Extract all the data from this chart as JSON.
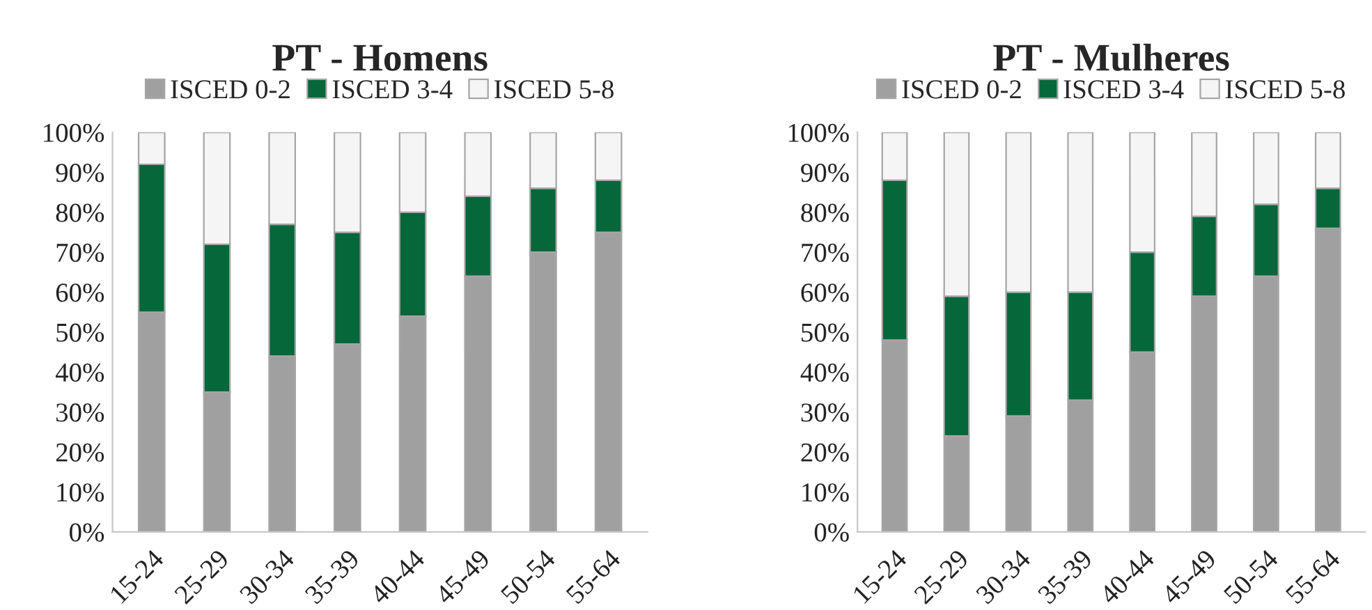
{
  "chart_data": [
    {
      "type": "bar",
      "title": "PT - Homens",
      "stacked": true,
      "legend": "top",
      "categories": [
        "15-24",
        "25-29",
        "30-34",
        "35-39",
        "40-44",
        "45-49",
        "50-54",
        "55-64"
      ],
      "series": [
        {
          "name": "ISCED 0-2",
          "color": "#a0a0a0",
          "values": [
            55,
            35,
            44,
            47,
            54,
            64,
            70,
            75
          ]
        },
        {
          "name": "ISCED 3-4",
          "color": "#05673a",
          "values": [
            37,
            37,
            33,
            28,
            26,
            20,
            16,
            13
          ]
        },
        {
          "name": "ISCED 5-8",
          "color": "#f5f5f5",
          "values": [
            8,
            28,
            23,
            25,
            20,
            16,
            14,
            12
          ]
        }
      ],
      "ylim": [
        0,
        100
      ],
      "yticks": [
        {
          "value": 0,
          "label": "0%"
        },
        {
          "value": 10,
          "label": "10%"
        },
        {
          "value": 20,
          "label": "20%"
        },
        {
          "value": 30,
          "label": "30%"
        },
        {
          "value": 40,
          "label": "40%"
        },
        {
          "value": 50,
          "label": "50%"
        },
        {
          "value": 60,
          "label": "60%"
        },
        {
          "value": 70,
          "label": "70%"
        },
        {
          "value": 80,
          "label": "80%"
        },
        {
          "value": 90,
          "label": "90%"
        },
        {
          "value": 100,
          "label": "100%"
        }
      ]
    },
    {
      "type": "bar",
      "title": "PT - Mulheres",
      "stacked": true,
      "legend": "top",
      "categories": [
        "15-24",
        "25-29",
        "30-34",
        "35-39",
        "40-44",
        "45-49",
        "50-54",
        "55-64"
      ],
      "series": [
        {
          "name": "ISCED 0-2",
          "color": "#a0a0a0",
          "values": [
            48,
            24,
            29,
            33,
            45,
            59,
            64,
            76
          ]
        },
        {
          "name": "ISCED 3-4",
          "color": "#05673a",
          "values": [
            40,
            35,
            31,
            27,
            25,
            20,
            18,
            10
          ]
        },
        {
          "name": "ISCED 5-8",
          "color": "#f5f5f5",
          "values": [
            12,
            41,
            40,
            40,
            30,
            21,
            18,
            14
          ]
        }
      ],
      "ylim": [
        0,
        100
      ],
      "yticks": [
        {
          "value": 0,
          "label": "0%"
        },
        {
          "value": 10,
          "label": "10%"
        },
        {
          "value": 20,
          "label": "20%"
        },
        {
          "value": 30,
          "label": "30%"
        },
        {
          "value": 40,
          "label": "40%"
        },
        {
          "value": 50,
          "label": "50%"
        },
        {
          "value": 60,
          "label": "60%"
        },
        {
          "value": 70,
          "label": "70%"
        },
        {
          "value": 80,
          "label": "80%"
        },
        {
          "value": 90,
          "label": "90%"
        },
        {
          "value": 100,
          "label": "100%"
        }
      ]
    }
  ]
}
